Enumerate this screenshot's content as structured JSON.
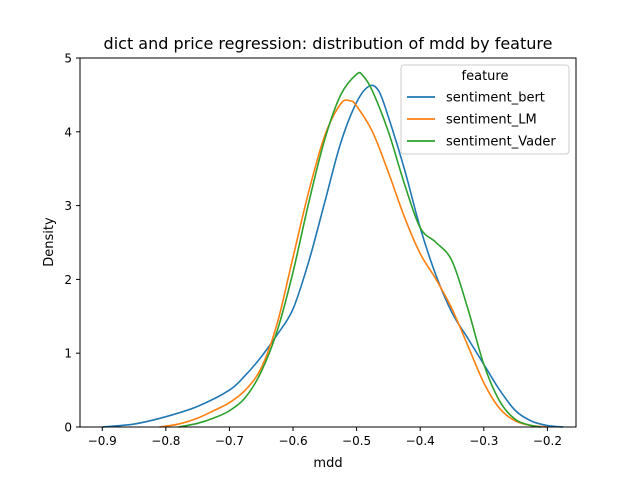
{
  "chart_data": {
    "type": "line",
    "title": "dict and price regression: distribution of mdd by feature",
    "xlabel": "mdd",
    "ylabel": "Density",
    "xlim": [
      -0.935,
      -0.155
    ],
    "ylim": [
      0,
      5
    ],
    "xticks": [
      -0.9,
      -0.8,
      -0.7,
      -0.6,
      -0.5,
      -0.4,
      -0.3,
      -0.2
    ],
    "xtick_labels": [
      "−0.9",
      "−0.8",
      "−0.7",
      "−0.6",
      "−0.5",
      "−0.4",
      "−0.3",
      "−0.2"
    ],
    "yticks": [
      0,
      1,
      2,
      3,
      4,
      5
    ],
    "ytick_labels": [
      "0",
      "1",
      "2",
      "3",
      "4",
      "5"
    ],
    "grid": false,
    "legend": {
      "title": "feature",
      "placement": "top-right"
    },
    "series": [
      {
        "name": "sentiment_bert",
        "color": "#1f77b4",
        "points": [
          [
            -0.9,
            0.0
          ],
          [
            -0.85,
            0.04
          ],
          [
            -0.8,
            0.14
          ],
          [
            -0.75,
            0.28
          ],
          [
            -0.7,
            0.5
          ],
          [
            -0.675,
            0.7
          ],
          [
            -0.65,
            0.95
          ],
          [
            -0.625,
            1.25
          ],
          [
            -0.6,
            1.6
          ],
          [
            -0.575,
            2.25
          ],
          [
            -0.55,
            3.05
          ],
          [
            -0.525,
            3.85
          ],
          [
            -0.5,
            4.4
          ],
          [
            -0.48,
            4.62
          ],
          [
            -0.465,
            4.55
          ],
          [
            -0.45,
            4.2
          ],
          [
            -0.425,
            3.5
          ],
          [
            -0.4,
            2.7
          ],
          [
            -0.375,
            2.05
          ],
          [
            -0.35,
            1.55
          ],
          [
            -0.325,
            1.2
          ],
          [
            -0.3,
            0.85
          ],
          [
            -0.275,
            0.5
          ],
          [
            -0.25,
            0.22
          ],
          [
            -0.225,
            0.08
          ],
          [
            -0.2,
            0.02
          ],
          [
            -0.175,
            0.0
          ]
        ]
      },
      {
        "name": "sentiment_LM",
        "color": "#ff7f0e",
        "points": [
          [
            -0.81,
            0.0
          ],
          [
            -0.78,
            0.04
          ],
          [
            -0.75,
            0.12
          ],
          [
            -0.725,
            0.22
          ],
          [
            -0.7,
            0.33
          ],
          [
            -0.675,
            0.5
          ],
          [
            -0.65,
            0.8
          ],
          [
            -0.625,
            1.4
          ],
          [
            -0.6,
            2.3
          ],
          [
            -0.575,
            3.2
          ],
          [
            -0.55,
            3.95
          ],
          [
            -0.525,
            4.38
          ],
          [
            -0.51,
            4.42
          ],
          [
            -0.5,
            4.35
          ],
          [
            -0.475,
            4.0
          ],
          [
            -0.45,
            3.45
          ],
          [
            -0.425,
            2.85
          ],
          [
            -0.4,
            2.35
          ],
          [
            -0.375,
            2.0
          ],
          [
            -0.35,
            1.6
          ],
          [
            -0.325,
            1.1
          ],
          [
            -0.3,
            0.6
          ],
          [
            -0.275,
            0.25
          ],
          [
            -0.25,
            0.08
          ],
          [
            -0.225,
            0.02
          ],
          [
            -0.2,
            0.0
          ]
        ]
      },
      {
        "name": "sentiment_Vader",
        "color": "#2ca02c",
        "points": [
          [
            -0.78,
            0.0
          ],
          [
            -0.75,
            0.05
          ],
          [
            -0.725,
            0.12
          ],
          [
            -0.7,
            0.22
          ],
          [
            -0.675,
            0.4
          ],
          [
            -0.65,
            0.75
          ],
          [
            -0.625,
            1.3
          ],
          [
            -0.6,
            2.1
          ],
          [
            -0.575,
            3.05
          ],
          [
            -0.55,
            3.9
          ],
          [
            -0.525,
            4.5
          ],
          [
            -0.5,
            4.78
          ],
          [
            -0.49,
            4.76
          ],
          [
            -0.475,
            4.55
          ],
          [
            -0.45,
            4.0
          ],
          [
            -0.425,
            3.3
          ],
          [
            -0.4,
            2.7
          ],
          [
            -0.375,
            2.5
          ],
          [
            -0.35,
            2.25
          ],
          [
            -0.325,
            1.6
          ],
          [
            -0.3,
            0.85
          ],
          [
            -0.275,
            0.35
          ],
          [
            -0.25,
            0.1
          ],
          [
            -0.225,
            0.02
          ],
          [
            -0.21,
            0.0
          ]
        ]
      }
    ]
  }
}
